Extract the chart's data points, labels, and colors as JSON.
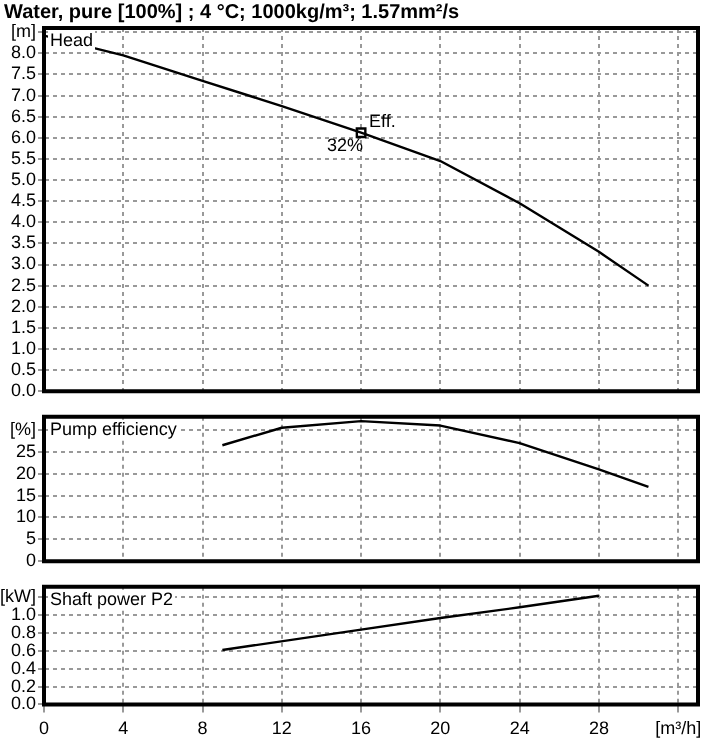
{
  "chart_data": [
    {
      "type": "line",
      "title": "Head",
      "annotations": [
        "Water, pure [100%] ; 4 °C; 1000kg/m³; 1.57mm²/s",
        {
          "text": "Eff.",
          "x": 16,
          "y": 6.12
        },
        {
          "text": "32%",
          "x": 16,
          "y": 6.12
        }
      ],
      "xlim": [
        0,
        33
      ],
      "xticks": [
        0,
        4,
        8,
        12,
        16,
        20,
        24,
        28,
        32
      ],
      "ylim": [
        0,
        8.6
      ],
      "yticks": [
        {
          "value": 0,
          "label": "0.0"
        },
        0.5,
        {
          "value": 1,
          "label": "1.0"
        },
        1.5,
        {
          "value": 2,
          "label": "2.0"
        },
        2.5,
        {
          "value": 3,
          "label": "3.0"
        },
        3.5,
        {
          "value": 4,
          "label": "4.0"
        },
        4.5,
        {
          "value": 5,
          "label": "5.0"
        },
        5.5,
        {
          "value": 6,
          "label": "6.0"
        },
        6.5,
        {
          "value": 7,
          "label": "7.0"
        },
        7.5,
        {
          "value": 8,
          "label": "8.0"
        },
        {
          "value": 8.5,
          "label": "[m]"
        }
      ],
      "tick_labels": "y",
      "grid": true,
      "legend": false,
      "line_style": "solid",
      "series": [
        {
          "color": "#000000",
          "x": [
            0,
            4,
            8,
            12,
            16,
            20,
            24,
            28,
            30.5
          ],
          "values": [
            8.42,
            7.95,
            7.35,
            6.75,
            6.12,
            5.45,
            4.45,
            3.3,
            2.5
          ]
        },
        {
          "type": "scatter",
          "marker": "square",
          "color": "#000000",
          "x": [
            16
          ],
          "values": [
            6.12
          ]
        }
      ]
    },
    {
      "type": "line",
      "title": "Pump efficiency",
      "xlim": [
        0,
        33
      ],
      "xticks": [
        0,
        4,
        8,
        12,
        16,
        20,
        24,
        28,
        32
      ],
      "ylim": [
        0,
        33
      ],
      "yticks": [
        0,
        5,
        10,
        15,
        20,
        25,
        {
          "value": 30,
          "label": "[%]"
        }
      ],
      "tick_labels": "y",
      "grid": true,
      "legend": false,
      "line_style": "solid",
      "series": [
        {
          "color": "#000000",
          "x": [
            9,
            12,
            16,
            20,
            24,
            28,
            30.5
          ],
          "values": [
            26.5,
            30.5,
            32,
            31,
            27,
            21,
            17
          ]
        }
      ]
    },
    {
      "type": "line",
      "title": "Shaft power P2",
      "xlim": [
        0,
        33
      ],
      "xticks": [
        0,
        4,
        8,
        12,
        16,
        20,
        24,
        28,
        {
          "value": 32,
          "label": "[m³/h]"
        }
      ],
      "ylim": [
        0,
        1.32
      ],
      "yticks": [
        {
          "value": 0,
          "label": "0.0"
        },
        0.2,
        0.4,
        0.6,
        0.8,
        {
          "value": 1,
          "label": "1.0"
        },
        {
          "value": 1.2,
          "label": "[kW]"
        }
      ],
      "grid": true,
      "legend": false,
      "line_style": "solid",
      "series": [
        {
          "color": "#000000",
          "x": [
            9,
            16,
            20,
            24,
            28
          ],
          "values": [
            0.61,
            0.84,
            0.97,
            1.09,
            1.22
          ]
        }
      ]
    }
  ]
}
